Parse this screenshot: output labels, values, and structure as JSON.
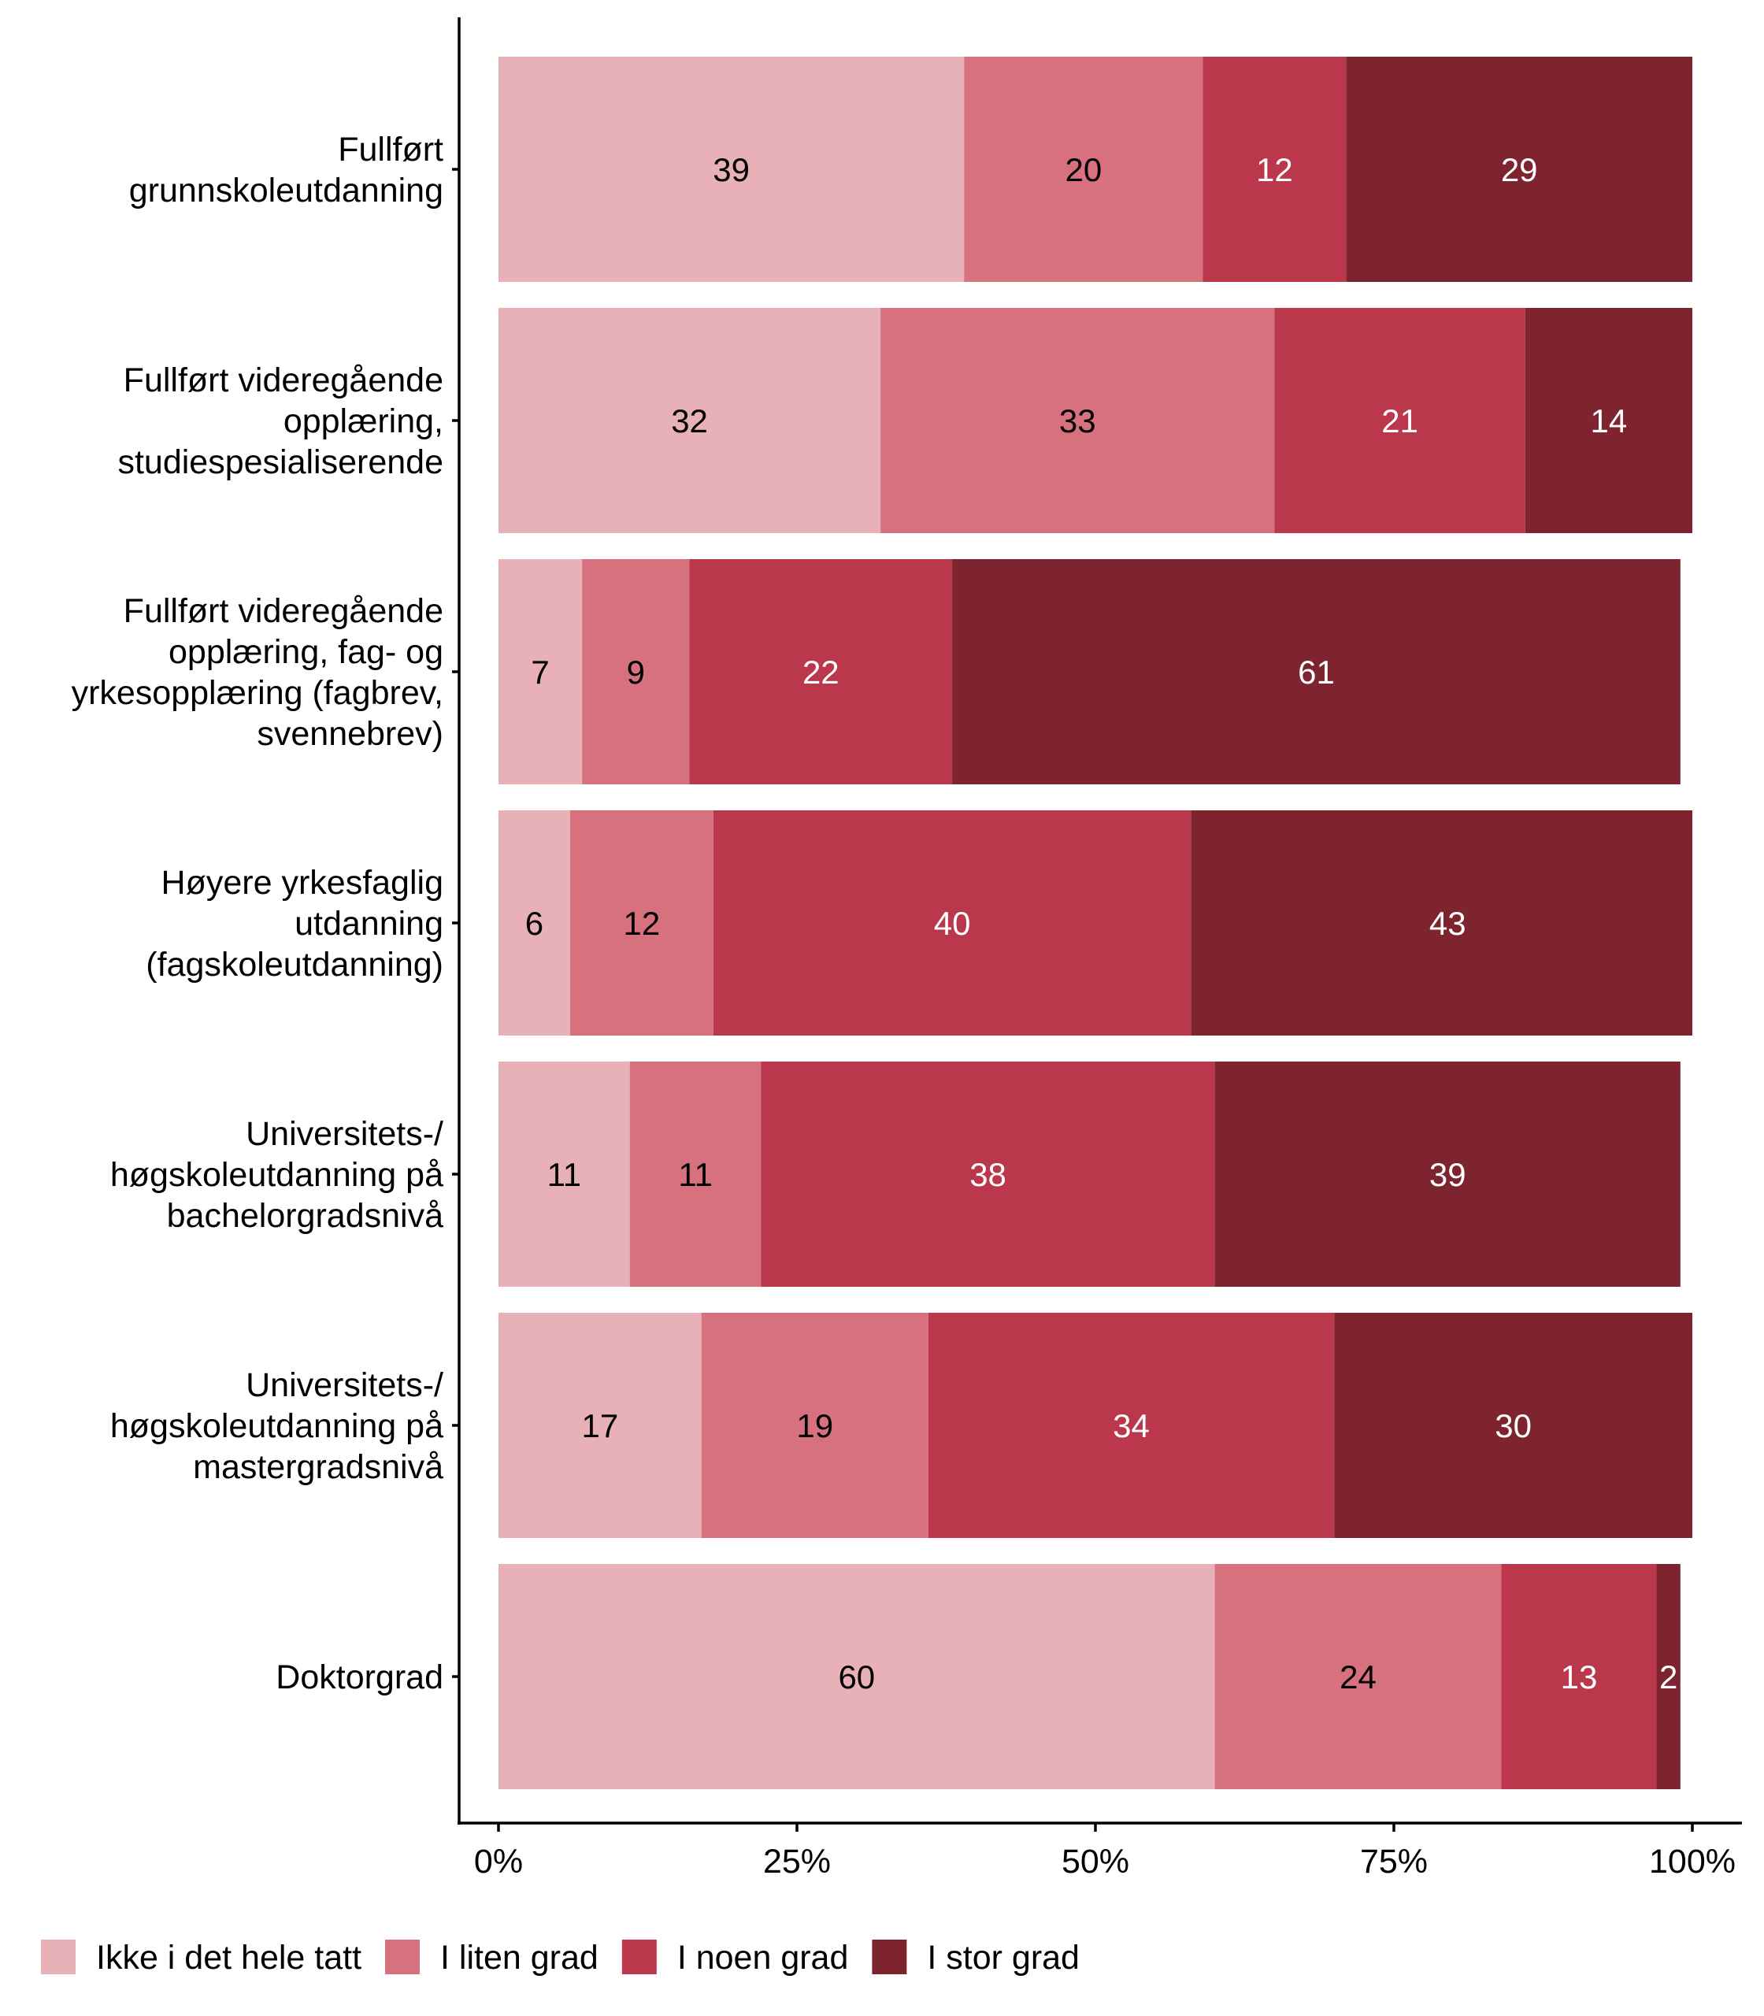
{
  "chart_data": {
    "type": "bar",
    "orientation": "horizontal",
    "stacked": true,
    "percent": true,
    "title": "",
    "xlabel": "",
    "ylabel": "",
    "xlim": [
      0,
      100
    ],
    "grid": false,
    "legend_position": "bottom-left",
    "x_ticks": [
      "0%",
      "25%",
      "50%",
      "75%",
      "100%"
    ],
    "x_tick_values": [
      0,
      25,
      50,
      75,
      100
    ],
    "categories": [
      [
        "Fullført",
        "grunnskoleutdanning"
      ],
      [
        "Fullført videregående",
        "opplæring,",
        "studiespesialiserende"
      ],
      [
        "Fullført videregående",
        "opplæring, fag- og",
        "yrkesopplæring (fagbrev,",
        "svennebrev)"
      ],
      [
        "Høyere yrkesfaglig",
        "utdanning",
        "(fagskoleutdanning)"
      ],
      [
        "Universitets-/",
        "høgskoleutdanning på",
        "bachelorgradsnivå"
      ],
      [
        "Universitets-/",
        "høgskoleutdanning på",
        "mastergradsnivå"
      ],
      [
        "Doktorgrad"
      ]
    ],
    "series": [
      {
        "name": "Ikke i det hele tatt",
        "color": "#E8B1B7",
        "label_color": "#000000",
        "values": [
          39,
          32,
          7,
          6,
          11,
          17,
          60
        ]
      },
      {
        "name": "I liten grad",
        "color": "#D6717D",
        "label_color": "#000000",
        "values": [
          20,
          33,
          9,
          12,
          11,
          19,
          24
        ]
      },
      {
        "name": "I noen grad",
        "color": "#BB374B",
        "label_color": "#FFFFFF",
        "values": [
          12,
          21,
          22,
          40,
          38,
          34,
          13
        ]
      },
      {
        "name": "I stor grad",
        "color": "#7D242F",
        "label_color": "#FFFFFF",
        "values": [
          29,
          14,
          61,
          43,
          39,
          30,
          2
        ]
      }
    ]
  }
}
